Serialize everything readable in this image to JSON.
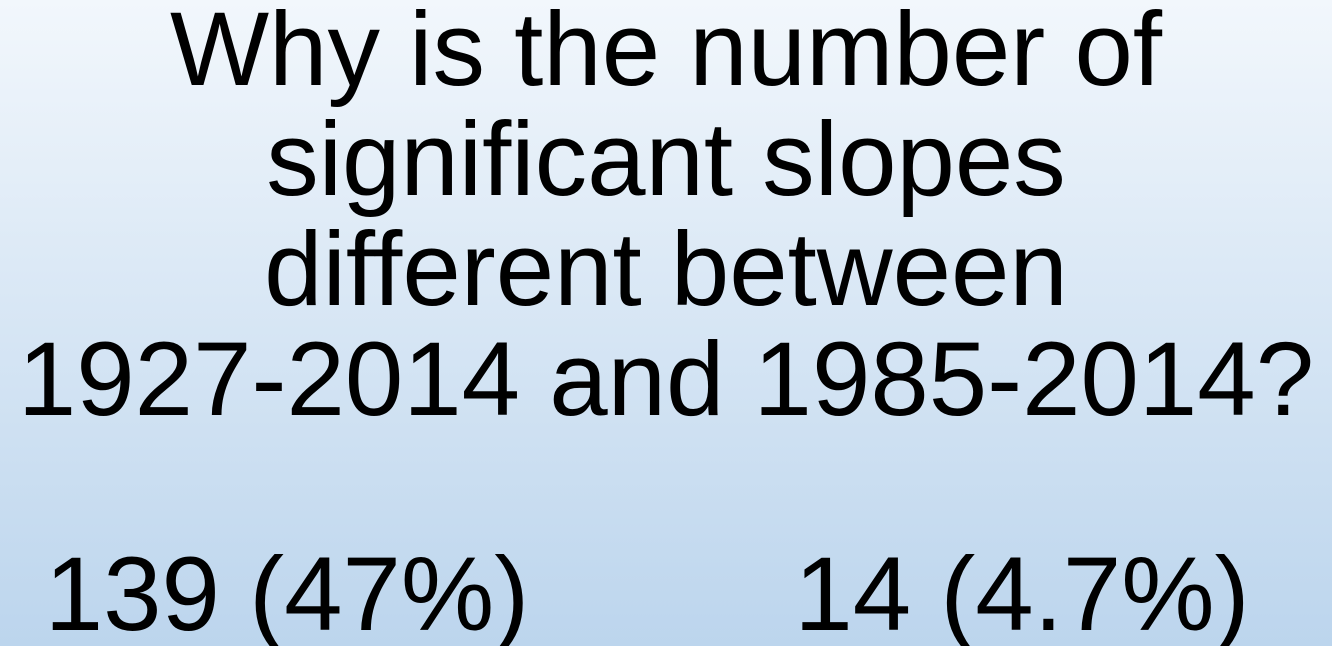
{
  "slide": {
    "title_lines": [
      "Why is the number of",
      "significant slopes",
      "different between",
      "1927-2014 and 1985-2014?"
    ],
    "stats": [
      "139 (47%)",
      "14 (4.7%)"
    ]
  }
}
